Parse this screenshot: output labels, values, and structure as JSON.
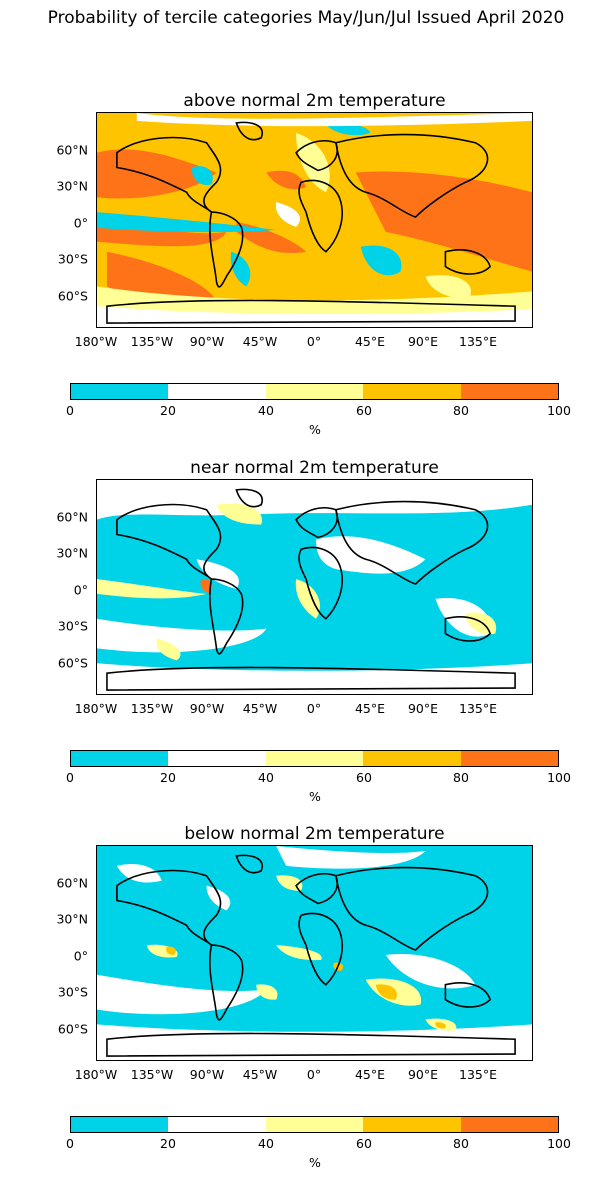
{
  "title": "Probability of tercile categories May/Jun/Jul Issued April 2020",
  "latitude_ticks": [
    "60°N",
    "30°N",
    "0°",
    "30°S",
    "60°S"
  ],
  "longitude_ticks": [
    "180°W",
    "135°W",
    "90°W",
    "45°W",
    "0°",
    "45°E",
    "90°E",
    "135°E"
  ],
  "colorbar": {
    "ticks": [
      "0",
      "20",
      "40",
      "60",
      "80",
      "100"
    ],
    "unit": "%",
    "colors": [
      "#00d2e8",
      "#ffffff",
      "#ffff96",
      "#ffc400",
      "#ff7318"
    ]
  },
  "panels": [
    {
      "title": "above normal 2m temperature",
      "base_color": "#ffc400",
      "dominant_category": "60-80"
    },
    {
      "title": "near normal 2m temperature",
      "base_color": "#00d2e8",
      "dominant_category": "0-20"
    },
    {
      "title": "below normal 2m temperature",
      "base_color": "#00d2e8",
      "dominant_category": "0-20"
    }
  ]
}
